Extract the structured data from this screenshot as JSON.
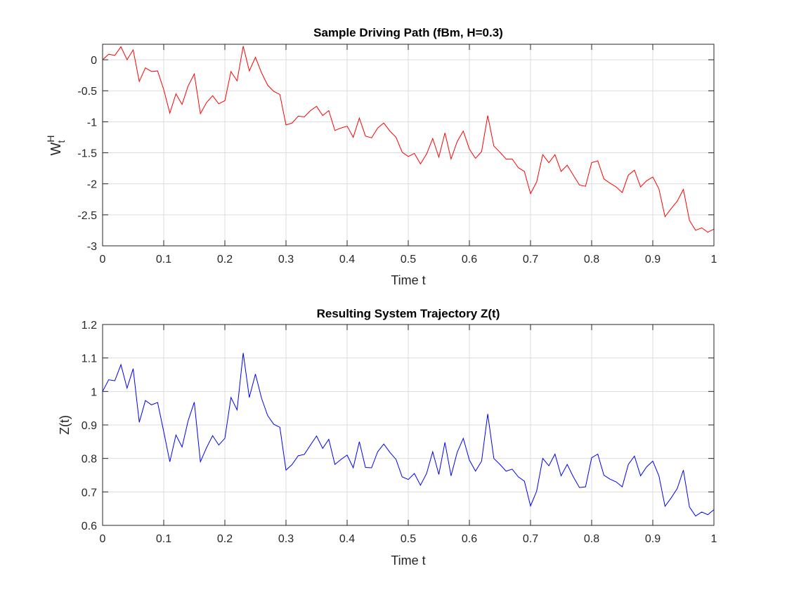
{
  "chart_data": [
    {
      "type": "line",
      "title": "Sample Driving Path (fBm, H=0.3)",
      "xlabel": "Time t",
      "ylabel_main": "W",
      "ylabel_sup": "H",
      "ylabel_sub": "t",
      "xlim": [
        0,
        1
      ],
      "ylim": [
        -3,
        0.25
      ],
      "xticks": [
        0,
        0.1,
        0.2,
        0.3,
        0.4,
        0.5,
        0.6,
        0.7,
        0.8,
        0.9,
        1
      ],
      "xtick_labels": [
        "0",
        "0.1",
        "0.2",
        "0.3",
        "0.4",
        "0.5",
        "0.6",
        "0.7",
        "0.8",
        "0.9",
        "1"
      ],
      "yticks": [
        0,
        -0.5,
        -1,
        -1.5,
        -2,
        -2.5,
        -3
      ],
      "ytick_labels": [
        "0",
        "-0.5",
        "-1",
        "-1.5",
        "-2",
        "-2.5",
        "-3"
      ],
      "grid": true,
      "color": "#ff0000",
      "series": [
        {
          "x": [
            0,
            0.01,
            0.02,
            0.03,
            0.04,
            0.05,
            0.06,
            0.07,
            0.08,
            0.09,
            0.1,
            0.11,
            0.12,
            0.13,
            0.14,
            0.15,
            0.16,
            0.17,
            0.18,
            0.19,
            0.2,
            0.21,
            0.22,
            0.23,
            0.24,
            0.25,
            0.26,
            0.27,
            0.28,
            0.29,
            0.3,
            0.31,
            0.32,
            0.33,
            0.34,
            0.35,
            0.36,
            0.37,
            0.38,
            0.39,
            0.4,
            0.41,
            0.42,
            0.43,
            0.44,
            0.45,
            0.46,
            0.47,
            0.48,
            0.49,
            0.5,
            0.51,
            0.52,
            0.53,
            0.54,
            0.55,
            0.56,
            0.57,
            0.58,
            0.59,
            0.6,
            0.61,
            0.62,
            0.63,
            0.64,
            0.65,
            0.66,
            0.67,
            0.68,
            0.69,
            0.7,
            0.71,
            0.72,
            0.73,
            0.74,
            0.75,
            0.76,
            0.77,
            0.78,
            0.79,
            0.8,
            0.81,
            0.82,
            0.83,
            0.84,
            0.85,
            0.86,
            0.87,
            0.88,
            0.89,
            0.9,
            0.91,
            0.92,
            0.93,
            0.94,
            0.95,
            0.96,
            0.97,
            0.98,
            0.99,
            1.0
          ],
          "values": [
            0,
            0.09,
            0.07,
            0.21,
            0,
            0.16,
            -0.35,
            -0.13,
            -0.19,
            -0.18,
            -0.48,
            -0.86,
            -0.55,
            -0.72,
            -0.42,
            -0.23,
            -0.87,
            -0.69,
            -0.58,
            -0.71,
            -0.66,
            -0.19,
            -0.34,
            0.22,
            -0.18,
            0.04,
            -0.21,
            -0.41,
            -0.51,
            -0.56,
            -1.05,
            -1.02,
            -0.91,
            -0.92,
            -0.82,
            -0.75,
            -0.9,
            -0.82,
            -1.14,
            -1.1,
            -1.07,
            -1.25,
            -0.94,
            -1.23,
            -1.26,
            -1.1,
            -1.02,
            -1.15,
            -1.25,
            -1.49,
            -1.56,
            -1.51,
            -1.68,
            -1.52,
            -1.27,
            -1.57,
            -1.18,
            -1.6,
            -1.32,
            -1.15,
            -1.44,
            -1.59,
            -1.48,
            -0.9,
            -1.39,
            -1.49,
            -1.6,
            -1.6,
            -1.74,
            -1.8,
            -2.16,
            -1.97,
            -1.53,
            -1.66,
            -1.53,
            -1.8,
            -1.7,
            -1.86,
            -2.02,
            -2.04,
            -1.66,
            -1.63,
            -1.92,
            -1.99,
            -2.05,
            -2.14,
            -1.86,
            -1.78,
            -2.05,
            -1.95,
            -1.89,
            -2.08,
            -2.53,
            -2.4,
            -2.28,
            -2.09,
            -2.59,
            -2.75,
            -2.71,
            -2.78,
            -2.73
          ]
        }
      ]
    },
    {
      "type": "line",
      "title": "Resulting System Trajectory Z(t)",
      "xlabel": "Time t",
      "ylabel": "Z(t)",
      "xlim": [
        0,
        1
      ],
      "ylim": [
        0.6,
        1.2
      ],
      "xticks": [
        0,
        0.1,
        0.2,
        0.3,
        0.4,
        0.5,
        0.6,
        0.7,
        0.8,
        0.9,
        1
      ],
      "xtick_labels": [
        "0",
        "0.1",
        "0.2",
        "0.3",
        "0.4",
        "0.5",
        "0.6",
        "0.7",
        "0.8",
        "0.9",
        "1"
      ],
      "yticks": [
        0.6,
        0.7,
        0.8,
        0.9,
        1,
        1.1,
        1.2
      ],
      "ytick_labels": [
        "0.6",
        "0.7",
        "0.8",
        "0.9",
        "1",
        "1.1",
        "1.2"
      ],
      "grid": true,
      "color": "#0000ff",
      "series": [
        {
          "x": [
            0,
            0.01,
            0.02,
            0.03,
            0.04,
            0.05,
            0.06,
            0.07,
            0.08,
            0.09,
            0.1,
            0.11,
            0.12,
            0.13,
            0.14,
            0.15,
            0.16,
            0.17,
            0.18,
            0.19,
            0.2,
            0.21,
            0.22,
            0.23,
            0.24,
            0.25,
            0.26,
            0.27,
            0.28,
            0.29,
            0.3,
            0.31,
            0.32,
            0.33,
            0.34,
            0.35,
            0.36,
            0.37,
            0.38,
            0.39,
            0.4,
            0.41,
            0.42,
            0.43,
            0.44,
            0.45,
            0.46,
            0.47,
            0.48,
            0.49,
            0.5,
            0.51,
            0.52,
            0.53,
            0.54,
            0.55,
            0.56,
            0.57,
            0.58,
            0.59,
            0.6,
            0.61,
            0.62,
            0.63,
            0.64,
            0.65,
            0.66,
            0.67,
            0.68,
            0.69,
            0.7,
            0.71,
            0.72,
            0.73,
            0.74,
            0.75,
            0.76,
            0.77,
            0.78,
            0.79,
            0.8,
            0.81,
            0.82,
            0.83,
            0.84,
            0.85,
            0.86,
            0.87,
            0.88,
            0.89,
            0.9,
            0.91,
            0.92,
            0.93,
            0.94,
            0.95,
            0.96,
            0.97,
            0.98,
            0.99,
            1.0
          ],
          "values": [
            1,
            1.035,
            1.032,
            1.08,
            1.01,
            1.068,
            0.908,
            0.973,
            0.96,
            0.967,
            0.88,
            0.79,
            0.87,
            0.834,
            0.913,
            0.968,
            0.79,
            0.832,
            0.868,
            0.84,
            0.86,
            0.982,
            0.945,
            1.115,
            0.982,
            1.052,
            0.98,
            0.928,
            0.902,
            0.893,
            0.765,
            0.782,
            0.808,
            0.812,
            0.84,
            0.867,
            0.83,
            0.857,
            0.782,
            0.797,
            0.81,
            0.772,
            0.85,
            0.773,
            0.772,
            0.82,
            0.843,
            0.818,
            0.797,
            0.745,
            0.737,
            0.755,
            0.72,
            0.755,
            0.82,
            0.752,
            0.848,
            0.748,
            0.818,
            0.86,
            0.795,
            0.762,
            0.792,
            0.933,
            0.8,
            0.782,
            0.762,
            0.768,
            0.745,
            0.732,
            0.658,
            0.702,
            0.8,
            0.778,
            0.813,
            0.748,
            0.782,
            0.745,
            0.713,
            0.715,
            0.802,
            0.813,
            0.75,
            0.738,
            0.73,
            0.715,
            0.782,
            0.807,
            0.748,
            0.775,
            0.792,
            0.748,
            0.657,
            0.682,
            0.71,
            0.765,
            0.655,
            0.628,
            0.64,
            0.632,
            0.647
          ]
        }
      ]
    }
  ]
}
